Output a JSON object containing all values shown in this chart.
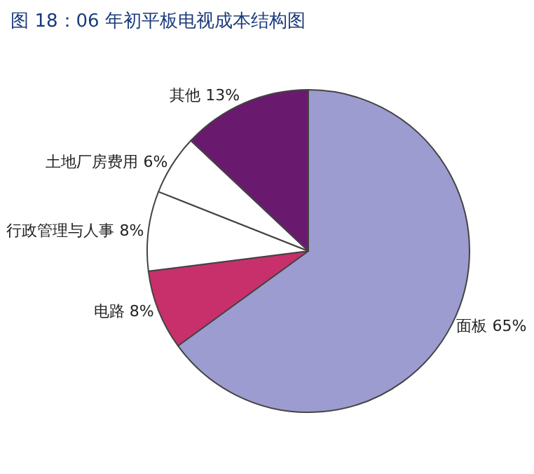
{
  "chart_data": {
    "type": "pie",
    "title": "图 18：06 年初平板电视成本结构图",
    "categories": [
      "面板",
      "电路",
      "行政管理与人事",
      "土地厂房费用",
      "其他"
    ],
    "values": [
      65,
      8,
      8,
      6,
      13
    ],
    "value_labels": [
      "65%",
      "8%",
      "8%",
      "6%",
      "13%"
    ],
    "colors": [
      "#9c9cd0",
      "#c8306c",
      "#ffffff",
      "#ffffff",
      "#6a1a6e"
    ],
    "legend": false
  }
}
